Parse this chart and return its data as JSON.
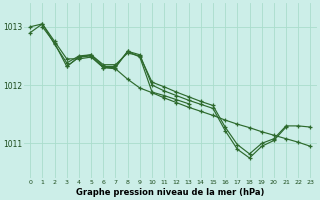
{
  "title": "Graphe pression niveau de la mer (hPa)",
  "bg_color": "#cceee8",
  "grid_color": "#aaddcc",
  "line_color": "#2d6a2d",
  "xlim": [
    -0.5,
    23.5
  ],
  "ylim": [
    1010.4,
    1013.4
  ],
  "yticks": [
    1011,
    1012,
    1013
  ],
  "xticks": [
    0,
    1,
    2,
    3,
    4,
    5,
    6,
    7,
    8,
    9,
    10,
    11,
    12,
    13,
    14,
    15,
    16,
    17,
    18,
    19,
    20,
    21,
    22,
    23
  ],
  "series": [
    {
      "x": [
        0,
        1,
        2,
        3,
        4,
        5,
        6,
        7,
        8,
        9,
        10,
        11,
        12,
        13,
        14,
        15,
        16,
        17,
        18,
        19,
        20,
        21,
        22,
        23
      ],
      "y": [
        1013.0,
        1013.05,
        1012.75,
        1012.45,
        1012.45,
        1012.48,
        1012.3,
        1012.28,
        1012.1,
        1011.95,
        1011.87,
        1011.78,
        1011.7,
        1011.62,
        1011.55,
        1011.48,
        1011.4,
        1011.33,
        1011.27,
        1011.2,
        1011.14,
        1011.08,
        1011.02,
        1010.95
      ]
    },
    {
      "x": [
        0,
        1,
        2,
        3,
        4,
        5,
        6,
        7,
        8,
        9,
        10,
        11,
        12,
        13,
        14,
        15,
        16,
        17,
        18,
        19,
        20,
        21,
        22,
        23
      ],
      "y": [
        1012.9,
        1013.05,
        1012.7,
        1012.38,
        1012.5,
        1012.52,
        1012.35,
        1012.35,
        1012.55,
        1012.5,
        1012.05,
        1011.97,
        1011.88,
        1011.8,
        1011.72,
        1011.65,
        1011.28,
        1010.98,
        1010.82,
        1011.0,
        1011.08,
        1011.3,
        1011.3,
        1011.28
      ]
    },
    {
      "x": [
        1,
        2,
        3,
        4,
        5,
        6,
        7,
        8,
        9,
        10,
        11,
        12,
        13,
        14,
        15,
        16,
        17,
        18,
        19,
        20,
        21
      ],
      "y": [
        1013.0,
        1012.72,
        1012.32,
        1012.48,
        1012.52,
        1012.32,
        1012.32,
        1012.58,
        1012.52,
        1012.0,
        1011.9,
        1011.82,
        1011.74,
        1011.67,
        1011.6,
        1011.22,
        1010.9,
        1010.75,
        1010.95,
        1011.05,
        1011.28
      ]
    },
    {
      "x": [
        3,
        4,
        5,
        6,
        7,
        8,
        9,
        10,
        11,
        12,
        13
      ],
      "y": [
        1012.32,
        1012.48,
        1012.5,
        1012.3,
        1012.3,
        1012.58,
        1012.48,
        1011.88,
        1011.82,
        1011.75,
        1011.68
      ]
    }
  ]
}
